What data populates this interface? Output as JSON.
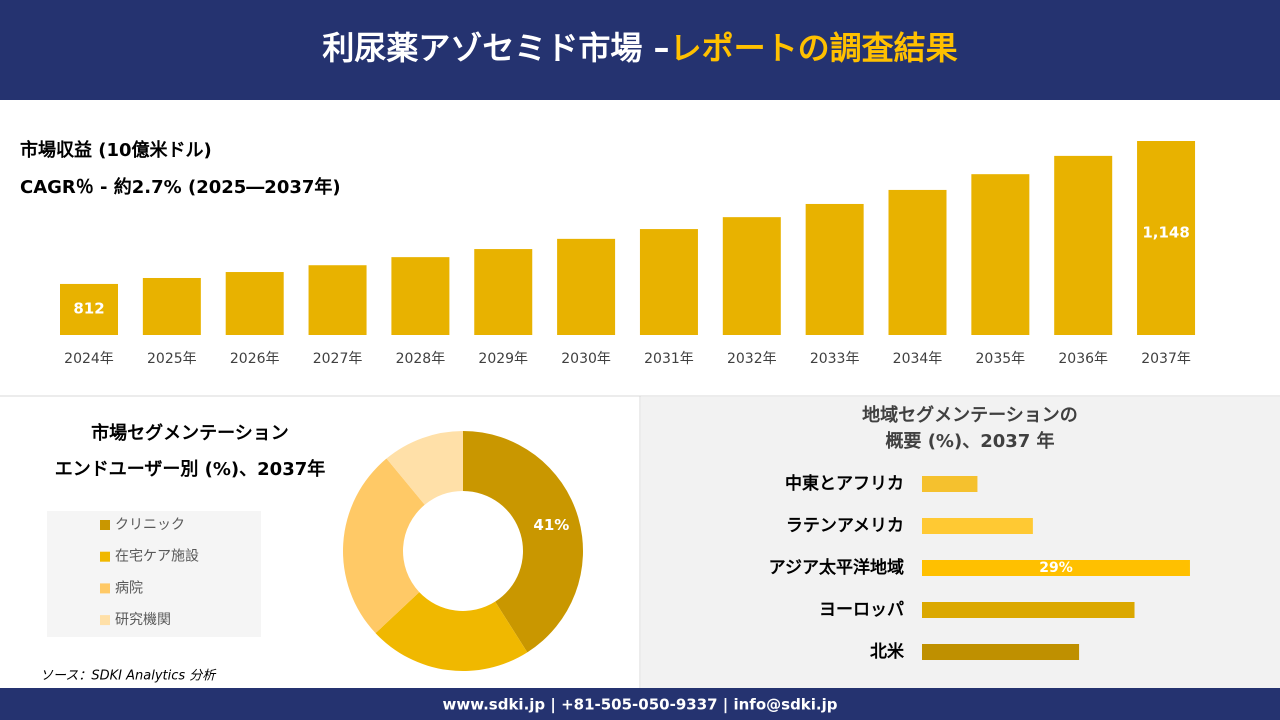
{
  "header": {
    "title": "利尿薬アゾセミド市場 –",
    "title_highlight": "レポートの調査結果"
  },
  "chart_data": [
    {
      "type": "bar",
      "title": "市場収益 (10億米ドル)",
      "subtitle": "CAGR％ - 約2.7% (2025―2037年)",
      "categories": [
        "2024年",
        "2025年",
        "2026年",
        "2027年",
        "2028年",
        "2029年",
        "2030年",
        "2031年",
        "2032年",
        "2033年",
        "2034年",
        "2035年",
        "2036年",
        "2037年"
      ],
      "values": [
        812,
        826,
        840,
        856,
        875,
        894,
        918,
        941,
        969,
        1000,
        1033,
        1070,
        1113,
        1148
      ],
      "value_labels": [
        "812",
        null,
        null,
        null,
        null,
        null,
        null,
        null,
        null,
        null,
        null,
        null,
        null,
        "1,148"
      ],
      "color": "#e8b200",
      "ylim": [
        692,
        1148
      ]
    },
    {
      "type": "donut",
      "title": "市場セグメンテーション",
      "subtitle": "エンドユーザー別 (%)、2037年",
      "categories": [
        "クリニック",
        "在宅ケア施設",
        "病院",
        "研究機関"
      ],
      "values": [
        41,
        22,
        26,
        11
      ],
      "value_labels": [
        "41%",
        null,
        null,
        null
      ],
      "colors": [
        "#c99700",
        "#f0b800",
        "#ffc966",
        "#ffe0a8"
      ]
    },
    {
      "type": "hbar",
      "title": "地域セグメンテーションの",
      "subtitle": "概要 (%)、2037 年",
      "categories": [
        "中東とアフリカ",
        "ラテンアメリカ",
        "アジア太平洋地域",
        "ヨーロッパ",
        "北米"
      ],
      "values": [
        6,
        12,
        29,
        23,
        17
      ],
      "value_labels": [
        null,
        null,
        "29%",
        null,
        null
      ],
      "colors": [
        "#f5c12e",
        "#ffc933",
        "#ffc000",
        "#dba800",
        "#bf9000"
      ]
    }
  ],
  "source": "ソース：SDKI Analytics 分析",
  "footer": "www.sdki.jp | +81-505-050-9337 | info@sdki.jp"
}
